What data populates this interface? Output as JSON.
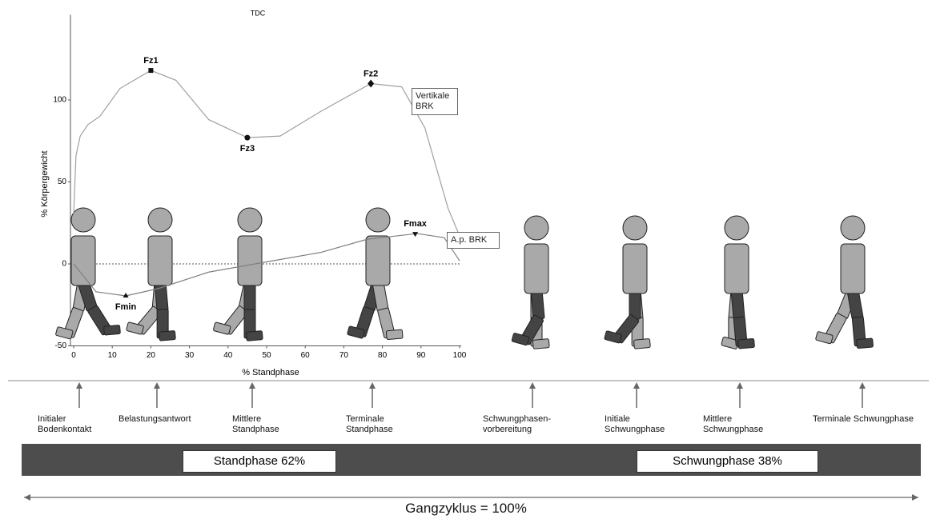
{
  "chart_data": {
    "type": "line",
    "title": "TDC",
    "xlabel": "% Standphase",
    "ylabel": "% Körpergewicht",
    "xlim": [
      0,
      100
    ],
    "ylim": [
      -50,
      150
    ],
    "xticks": [
      0,
      10,
      20,
      30,
      40,
      50,
      60,
      70,
      80,
      90,
      100
    ],
    "yticks": [
      -50,
      0,
      50,
      100
    ],
    "series": [
      {
        "name": "Vertikale BRK",
        "color": "#a0a0a0",
        "x": [
          0,
          0.6,
          1.7,
          3.7,
          6.8,
          12,
          20,
          26.5,
          35,
          45,
          53.5,
          64,
          77,
          85,
          91,
          97,
          100
        ],
        "values": [
          30,
          66,
          78,
          85,
          90,
          107,
          118,
          112,
          88,
          77,
          78,
          93,
          110,
          108,
          83,
          34,
          17
        ]
      },
      {
        "name": "A.p. BRK",
        "color": "#808080",
        "x": [
          0,
          5.8,
          13.5,
          22,
          35,
          47,
          64,
          76,
          89,
          96,
          100
        ],
        "values": [
          0,
          -17,
          -19.5,
          -15,
          -5,
          0,
          7,
          15,
          18.5,
          16,
          2
        ]
      }
    ],
    "annotations": [
      {
        "label": "Fz1",
        "x": 20,
        "y": 118,
        "marker": "square",
        "position": "above"
      },
      {
        "label": "Fz2",
        "x": 77,
        "y": 110,
        "marker": "diamond",
        "position": "above"
      },
      {
        "label": "Fz3",
        "x": 45,
        "y": 77,
        "marker": "circle",
        "position": "below"
      },
      {
        "label": "Fmin",
        "x": 13.5,
        "y": -19.5,
        "marker": "triangle-up",
        "position": "below"
      },
      {
        "label": "Fmax",
        "x": 88.5,
        "y": 18.5,
        "marker": "triangle-down",
        "position": "above"
      }
    ]
  },
  "gait": {
    "phases": [
      "Initialer\nBodenkontakt",
      "Belastungsantwort",
      "Mittlere\nStandphase",
      "Terminale\nStandphase",
      "Schwungphasen-\nvorbereitung",
      "Initiale\nSchwungphase",
      "Mittlere\nSchwungphase",
      "Terminale Schwungphase"
    ],
    "stance": "Standphase 62%",
    "swing": "Schwungphase 38%",
    "cycle": "Gangzyklus = 100%"
  }
}
